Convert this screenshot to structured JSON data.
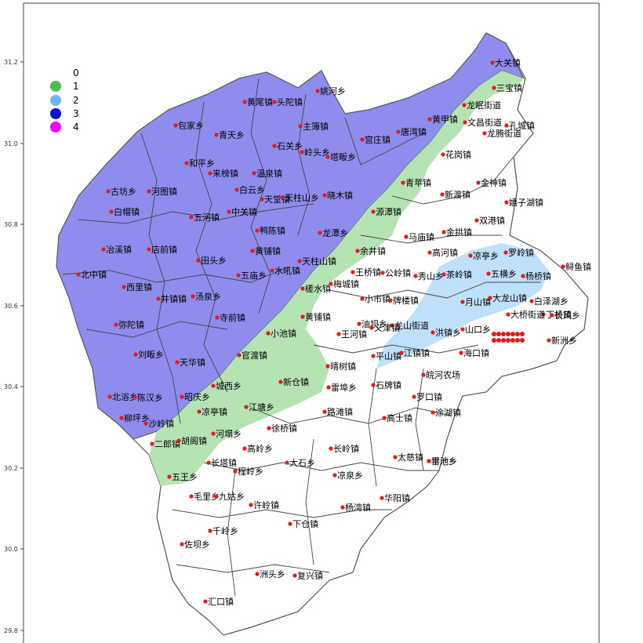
{
  "chart_data": {
    "type": "map",
    "y_ticks": [
      "31.2",
      "31.0",
      "30.8",
      "30.6",
      "30.4",
      "30.2",
      "30.0",
      "29.8"
    ],
    "legend": [
      {
        "label": "0",
        "color": "#ffffff"
      },
      {
        "label": "1",
        "color": "#4fbf4f"
      },
      {
        "label": "2",
        "color": "#6ab8ff"
      },
      {
        "label": "3",
        "color": "#0a14c8"
      },
      {
        "label": "4",
        "color": "#ff00ff"
      }
    ],
    "region_colors": {
      "purple": "#8e8cec",
      "green": "#b6e3b4",
      "lightblue": "#bfe0fb",
      "white": "#ffffff"
    },
    "places": [
      "姚河乡",
      "黄尾镇",
      "头陀镇",
      "包家乡",
      "青天乡",
      "主簿镇",
      "石关乡",
      "岭头乡",
      "塔畈乡",
      "宫庄镇",
      "唐湾镇",
      "黄甲镇",
      "大关镇",
      "三宝镇",
      "龙眠街道",
      "文昌街道",
      "孔城镇",
      "龙腾街道",
      "花岗镇",
      "和平乡",
      "来榜镇",
      "温泉镇",
      "青苹镇",
      "新渡镇",
      "金神镇",
      "嬉子湖镇",
      "古坊乡",
      "河图镇",
      "白云乡",
      "天堂镇",
      "天柱山乡",
      "晓木镇",
      "五河镇",
      "中关镇",
      "源潭镇",
      "白帽镇",
      "双港镇",
      "鸭陈镇",
      "龙潭乡",
      "马庙镇",
      "金拱镇",
      "冶溪镇",
      "店前镇",
      "黄铺镇",
      "余井镇",
      "高河镇",
      "罗岭镇",
      "鲟鱼镇",
      "北中镇",
      "田头乡",
      "天柱山镇",
      "凉亭乡",
      "王桥镇",
      "西里镇",
      "五庙乡",
      "水吼镇",
      "公岭镇",
      "秀山乡",
      "茶岭镇",
      "杨桥镇",
      "槎水镇",
      "汤泉乡",
      "梅城镇",
      "小市镇",
      "牌楼镇",
      "五横乡",
      "月山镇",
      "大龙山镇",
      "白泽湖乡",
      "井镇镇",
      "黄铺镇",
      "弥陀镇",
      "寺前镇",
      "丁桥镇",
      "大桥街道",
      "雷池乡",
      "小池镇",
      "油坝乡",
      "龙山街道",
      "山口乡",
      "王河镇",
      "长风乡",
      "洪镇乡",
      "新洲乡",
      "刘畈乡",
      "天华镇",
      "官渡镇",
      "平山镇",
      "江镇镇",
      "海口镇",
      "晴树镇",
      "皖河农场",
      "新仓镇",
      "城西乡",
      "北浴乡",
      "陈汉乡",
      "雷埠乡",
      "石牌镇",
      "罗口镇",
      "昭庆乡",
      "江塘乡",
      "义津镇",
      "凉亭镇",
      "路滩镇",
      "高士镇",
      "涂湖镇",
      "柳坪乡",
      "河塌乡",
      "徐桥镇",
      "沙岭镇",
      "长岭镇",
      "二郎镇",
      "胡阁镇",
      "高岭乡",
      "大石乡",
      "太慈镇",
      "平池乡",
      "长塔镇",
      "程岭乡",
      "凉泉乡",
      "五王乡",
      "毛里乡",
      "九姑乡",
      "华阳镇",
      "许岭镇",
      "杨湾镇",
      "千岭乡",
      "下仓镇",
      "佐坝乡",
      "洲头乡",
      "复兴镇",
      "汇口镇"
    ]
  }
}
